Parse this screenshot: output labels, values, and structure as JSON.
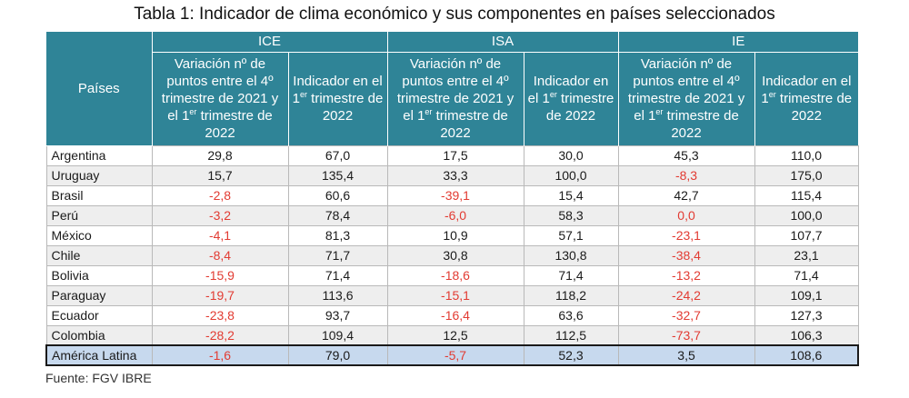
{
  "title": "Tabla 1: Indicador de clima económico y sus componentes en países seleccionados",
  "header": {
    "paises": "Países",
    "groups": [
      "ICE",
      "ISA",
      "IE"
    ],
    "var_label": "Variación nº de puntos entre el 4º trimestre de 2021 y el 1er trimestre de 2022",
    "ind_label": "Indicador en el 1er trimestre de 2022"
  },
  "rows": [
    {
      "country": "Argentina",
      "values": [
        "29,8",
        "67,0",
        "17,5",
        "30,0",
        "45,3",
        "110,0"
      ]
    },
    {
      "country": "Uruguay",
      "values": [
        "15,7",
        "135,4",
        "33,3",
        "100,0",
        "-8,3",
        "175,0"
      ]
    },
    {
      "country": "Brasil",
      "values": [
        "-2,8",
        "60,6",
        "-39,1",
        "15,4",
        "42,7",
        "115,4"
      ]
    },
    {
      "country": "Perú",
      "values": [
        "-3,2",
        "78,4",
        "-6,0",
        "58,3",
        "0,0",
        "100,0"
      ]
    },
    {
      "country": "México",
      "values": [
        "-4,1",
        "81,3",
        "10,9",
        "57,1",
        "-23,1",
        "107,7"
      ]
    },
    {
      "country": "Chile",
      "values": [
        "-8,4",
        "71,7",
        "30,8",
        "130,8",
        "-38,4",
        "23,1"
      ]
    },
    {
      "country": "Bolivia",
      "values": [
        "-15,9",
        "71,4",
        "-18,6",
        "71,4",
        "-13,2",
        "71,4"
      ]
    },
    {
      "country": "Paraguay",
      "values": [
        "-19,7",
        "113,6",
        "-15,1",
        "118,2",
        "-24,2",
        "109,1"
      ]
    },
    {
      "country": "Ecuador",
      "values": [
        "-23,8",
        "93,7",
        "-16,4",
        "63,6",
        "-32,7",
        "127,3"
      ]
    },
    {
      "country": "Colombia",
      "values": [
        "-28,2",
        "109,4",
        "12,5",
        "112,5",
        "-73,7",
        "106,3"
      ]
    }
  ],
  "total": {
    "country": "América Latina",
    "values": [
      "-1,6",
      "79,0",
      "-5,7",
      "52,3",
      "3,5",
      "108,6"
    ]
  },
  "highlight_rows": [
    3
  ],
  "highlight_cells": [
    [
      3,
      4
    ]
  ],
  "colors": {
    "header": "#2f8497",
    "negative": "#e23b32",
    "total_row": "#c7d9ee"
  },
  "source": "Fuente: FGV IBRE"
}
